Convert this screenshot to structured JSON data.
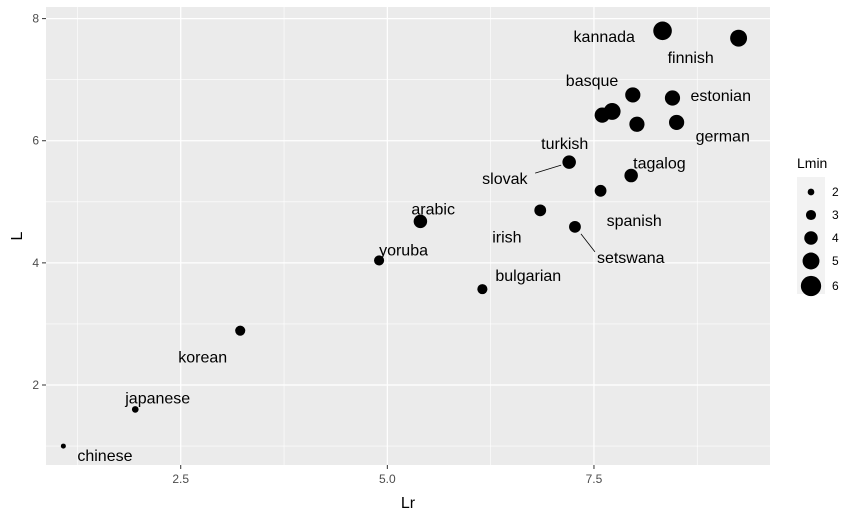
{
  "chart_data": {
    "type": "scatter",
    "xlabel": "Lr",
    "ylabel": "L",
    "xlim": [
      0.87,
      9.63
    ],
    "ylim": [
      0.69,
      8.19
    ],
    "x_ticks": [
      2.5,
      5.0,
      7.5
    ],
    "x_tick_labels": [
      "2.5",
      "5.0",
      "7.5"
    ],
    "y_ticks": [
      2,
      4,
      6,
      8
    ],
    "y_tick_labels": [
      "2",
      "4",
      "6",
      "8"
    ],
    "grid": true,
    "size_legend": {
      "title": "Lmin",
      "position": "right",
      "levels": [
        2,
        3,
        4,
        5,
        6
      ],
      "labels": [
        "2",
        "3",
        "4",
        "5",
        "6"
      ]
    },
    "points": [
      {
        "x": 1.08,
        "y": 1.0,
        "size": 1.5,
        "label": "chinese"
      },
      {
        "x": 1.95,
        "y": 1.6,
        "size": 2.0,
        "label": "japanese"
      },
      {
        "x": 3.22,
        "y": 2.89,
        "size": 3.0,
        "label": "korean"
      },
      {
        "x": 4.9,
        "y": 4.04,
        "size": 3.0,
        "label": "yoruba"
      },
      {
        "x": 5.4,
        "y": 4.68,
        "size": 4.0,
        "label": "arabic"
      },
      {
        "x": 6.15,
        "y": 3.57,
        "size": 3.0,
        "label": "bulgarian"
      },
      {
        "x": 6.85,
        "y": 4.86,
        "size": 3.5,
        "label": "irish"
      },
      {
        "x": 7.27,
        "y": 4.59,
        "size": 3.5,
        "label": "setswana"
      },
      {
        "x": 7.2,
        "y": 5.65,
        "size": 4.0,
        "label": "slovak"
      },
      {
        "x": 7.58,
        "y": 5.18,
        "size": 3.5,
        "label": "spanish"
      },
      {
        "x": 7.95,
        "y": 5.43,
        "size": 4.0,
        "label": "tagalog"
      },
      {
        "x": 7.97,
        "y": 6.75,
        "size": 4.5,
        "label": "basque"
      },
      {
        "x": 8.45,
        "y": 6.7,
        "size": 4.5,
        "label": ""
      },
      {
        "x": 7.72,
        "y": 6.48,
        "size": 5.0,
        "label": ""
      },
      {
        "x": 7.6,
        "y": 6.42,
        "size": 4.5,
        "label": ""
      },
      {
        "x": 8.02,
        "y": 6.27,
        "size": 4.5,
        "label": ""
      },
      {
        "x": 8.5,
        "y": 6.3,
        "size": 4.5,
        "label": ""
      },
      {
        "x": 8.33,
        "y": 7.8,
        "size": 5.5,
        "label": "kannada"
      },
      {
        "x": 9.25,
        "y": 7.68,
        "size": 5.0,
        "label": "finnish"
      },
      {
        "x": 8.45,
        "y": 6.7,
        "size": 4.5,
        "label": "estonian"
      },
      {
        "x": 8.5,
        "y": 6.3,
        "size": 4.5,
        "label": "german"
      },
      {
        "x": 7.2,
        "y": 5.65,
        "size": 4.0,
        "label": "turkish"
      }
    ]
  }
}
